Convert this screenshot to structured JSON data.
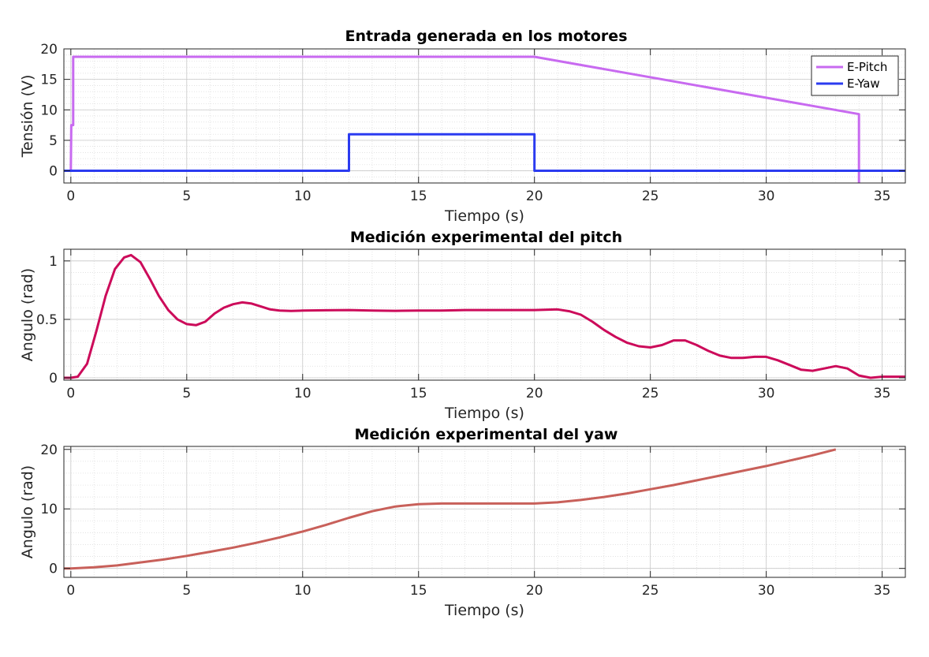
{
  "chart_data": [
    {
      "type": "line",
      "title": "Entrada generada en los motores",
      "xlabel": "Tiempo (s)",
      "ylabel": "Tensión (V)",
      "xlim": [
        -0.3,
        36
      ],
      "ylim": [
        -2,
        20
      ],
      "xticks": [
        0,
        5,
        10,
        15,
        20,
        25,
        30,
        35
      ],
      "yticks": [
        0,
        5,
        10,
        15,
        20
      ],
      "grid": true,
      "minor_grid": true,
      "legend": "top-right",
      "series": [
        {
          "name": "E-Pitch",
          "color": "#c86af0",
          "x": [
            0,
            0.02,
            0.1,
            0.1,
            20,
            34,
            34,
            34
          ],
          "y": [
            0,
            7.5,
            7.5,
            18.7,
            18.7,
            9.3,
            9.3,
            -2
          ]
        },
        {
          "name": "E-Yaw",
          "color": "#2b3bf0",
          "x": [
            -0.3,
            12,
            12,
            20,
            20,
            36
          ],
          "y": [
            0,
            0,
            6,
            6,
            0,
            0
          ]
        }
      ]
    },
    {
      "type": "line",
      "title": "Medición experimental del pitch",
      "xlabel": "Tiempo (s)",
      "ylabel": "Angulo (rad)",
      "xlim": [
        -0.3,
        36
      ],
      "ylim": [
        -0.02,
        1.1
      ],
      "xticks": [
        0,
        5,
        10,
        15,
        20,
        25,
        30,
        35
      ],
      "yticks": [
        0,
        0.5,
        1
      ],
      "grid": true,
      "minor_grid": true,
      "series": [
        {
          "color": "#cc0b5a",
          "x": [
            -0.3,
            0,
            0.3,
            0.7,
            1.1,
            1.5,
            1.9,
            2.3,
            2.6,
            3.0,
            3.4,
            3.8,
            4.2,
            4.6,
            5.0,
            5.4,
            5.8,
            6.2,
            6.6,
            7.0,
            7.4,
            7.8,
            8.2,
            8.6,
            9.0,
            9.5,
            10,
            11,
            12,
            13,
            14,
            15,
            16,
            17,
            18,
            19,
            20,
            21,
            21.5,
            22,
            22.5,
            23,
            23.5,
            24,
            24.5,
            25,
            25.5,
            26,
            26.5,
            27,
            27.5,
            28,
            28.5,
            29,
            29.5,
            30,
            30.5,
            31,
            31.5,
            32,
            32.5,
            33,
            33.5,
            34,
            34.5,
            35,
            35.5,
            36
          ],
          "y": [
            0,
            0,
            0.01,
            0.12,
            0.4,
            0.7,
            0.93,
            1.03,
            1.05,
            0.99,
            0.85,
            0.7,
            0.58,
            0.5,
            0.46,
            0.45,
            0.48,
            0.55,
            0.6,
            0.63,
            0.645,
            0.635,
            0.61,
            0.585,
            0.575,
            0.572,
            0.575,
            0.578,
            0.58,
            0.575,
            0.573,
            0.575,
            0.575,
            0.58,
            0.58,
            0.58,
            0.58,
            0.585,
            0.57,
            0.54,
            0.48,
            0.41,
            0.35,
            0.3,
            0.27,
            0.26,
            0.28,
            0.32,
            0.32,
            0.28,
            0.23,
            0.19,
            0.17,
            0.17,
            0.18,
            0.18,
            0.15,
            0.11,
            0.07,
            0.06,
            0.08,
            0.1,
            0.08,
            0.02,
            0.0,
            0.01,
            0.01,
            0.01
          ]
        }
      ]
    },
    {
      "type": "line",
      "title": "Medición experimental del yaw",
      "xlabel": "Tiempo (s)",
      "ylabel": "Angulo (rad)",
      "xlim": [
        -0.3,
        36
      ],
      "ylim": [
        -1.5,
        20.5
      ],
      "xticks": [
        0,
        5,
        10,
        15,
        20,
        25,
        30,
        35
      ],
      "yticks": [
        0,
        10,
        20
      ],
      "grid": true,
      "minor_grid": true,
      "series": [
        {
          "color": "#c8605a",
          "x": [
            -0.3,
            0,
            1,
            2,
            3,
            4,
            5,
            6,
            7,
            8,
            9,
            10,
            11,
            12,
            13,
            14,
            15,
            16,
            17,
            18,
            19,
            20,
            21,
            22,
            23,
            24,
            25,
            26,
            27,
            28,
            29,
            30,
            31,
            32,
            33
          ],
          "y": [
            0,
            0,
            0.2,
            0.5,
            1.0,
            1.5,
            2.1,
            2.8,
            3.5,
            4.3,
            5.2,
            6.2,
            7.3,
            8.5,
            9.6,
            10.4,
            10.8,
            10.9,
            10.9,
            10.9,
            10.9,
            10.9,
            11.1,
            11.5,
            12.0,
            12.6,
            13.3,
            14.0,
            14.8,
            15.6,
            16.4,
            17.2,
            18.1,
            19.0,
            20.0
          ]
        }
      ]
    }
  ]
}
